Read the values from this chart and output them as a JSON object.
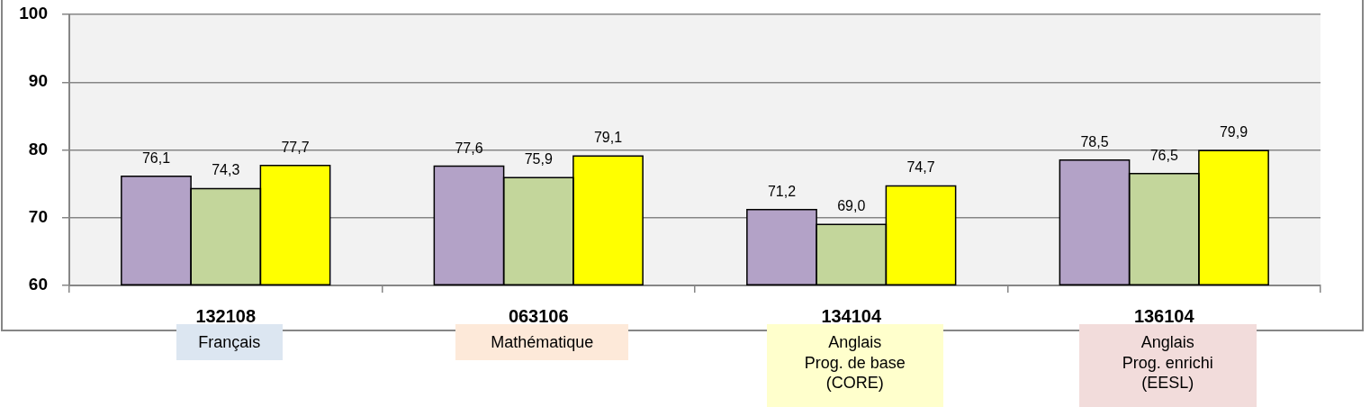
{
  "chart_data": {
    "type": "bar",
    "categories": [
      "132108",
      "063106",
      "134104",
      "136104"
    ],
    "series": [
      {
        "color": "#b3a2c7",
        "values": [
          76.1,
          77.6,
          71.2,
          78.5
        ],
        "value_labels": [
          "76,1",
          "77,6",
          "71,2",
          "78,5"
        ]
      },
      {
        "color": "#c3d69b",
        "values": [
          74.3,
          75.9,
          69.0,
          76.5
        ],
        "value_labels": [
          "74,3",
          "75,9",
          "69,0",
          "76,5"
        ]
      },
      {
        "color": "#ffff00",
        "values": [
          77.7,
          79.1,
          74.7,
          79.9
        ],
        "value_labels": [
          "77,7",
          "79,1",
          "74,7",
          "79,9"
        ]
      }
    ],
    "ylim": [
      60,
      100
    ],
    "yticks": [
      60,
      70,
      80,
      90,
      100
    ],
    "grid": "y",
    "annotations": [
      "Français",
      "Mathématique",
      "Anglais\nProg. de base\n(CORE)",
      "Anglais\nProg. enrichi\n(EESL)"
    ]
  }
}
